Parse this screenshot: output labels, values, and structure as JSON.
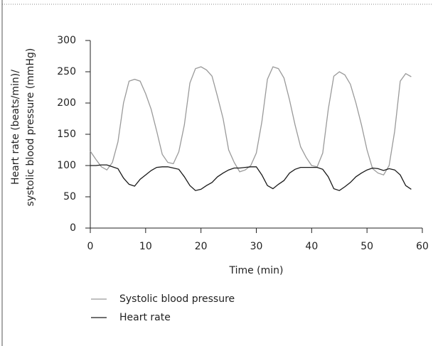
{
  "chart_data": {
    "type": "line",
    "x_label": "Time (min)",
    "y_label": [
      "Heart rate (beats/min)/",
      "systolic blood pressure (mmHg)"
    ],
    "x": [
      0,
      1,
      2,
      3,
      4,
      5,
      6,
      7,
      8,
      9,
      10,
      11,
      12,
      13,
      14,
      15,
      16,
      17,
      18,
      19,
      20,
      21,
      22,
      23,
      24,
      25,
      26,
      27,
      28,
      29,
      30,
      31,
      32,
      33,
      34,
      35,
      36,
      37,
      38,
      39,
      40,
      41,
      42,
      43,
      44,
      45,
      46,
      47,
      48,
      49,
      50,
      51,
      52,
      53,
      54,
      55,
      56,
      57,
      58
    ],
    "series": [
      {
        "name": "Systolic blood pressure",
        "color": "#9a9a9a",
        "values": [
          123,
          110,
          98,
          93,
          105,
          138,
          200,
          235,
          238,
          235,
          215,
          190,
          155,
          118,
          105,
          103,
          122,
          165,
          232,
          255,
          258,
          253,
          243,
          210,
          175,
          125,
          105,
          90,
          93,
          100,
          120,
          170,
          238,
          258,
          255,
          240,
          205,
          165,
          130,
          113,
          100,
          98,
          120,
          190,
          243,
          250,
          245,
          230,
          200,
          165,
          125,
          95,
          88,
          85,
          100,
          155,
          235,
          247,
          242
        ]
      },
      {
        "name": "Heart rate",
        "color": "#1a1a1a",
        "values": [
          100,
          100,
          101,
          101,
          98,
          95,
          80,
          70,
          67,
          78,
          85,
          92,
          97,
          98,
          98,
          96,
          94,
          82,
          68,
          60,
          62,
          68,
          73,
          82,
          88,
          93,
          96,
          96,
          97,
          98,
          98,
          85,
          68,
          63,
          70,
          76,
          88,
          94,
          97,
          97,
          97,
          97,
          94,
          82,
          63,
          60,
          66,
          73,
          82,
          88,
          93,
          96,
          95,
          92,
          95,
          93,
          85,
          68,
          62
        ]
      }
    ],
    "xlim": [
      0,
      60
    ],
    "xticks": [
      0,
      10,
      20,
      30,
      40,
      50,
      60
    ],
    "ylim": [
      0,
      300
    ],
    "yticks": [
      0,
      50,
      100,
      150,
      200,
      250,
      300
    ]
  }
}
